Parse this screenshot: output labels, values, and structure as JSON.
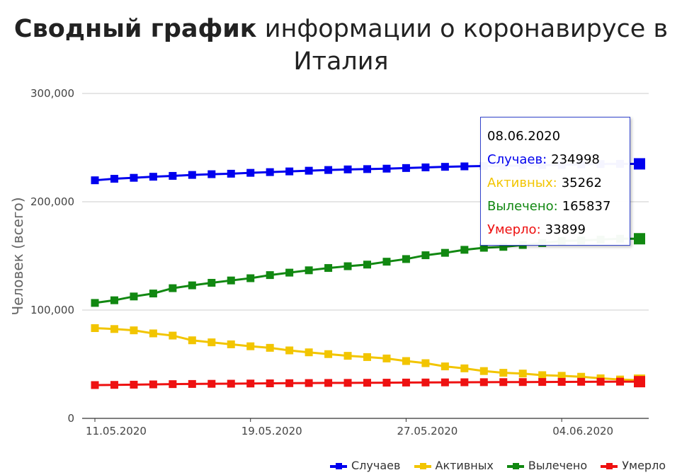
{
  "title_bold": "Сводный график",
  "title_rest": "информации о коронавирусе в Италия",
  "tooltip": {
    "date": "08.06.2020",
    "rows": [
      {
        "label": "Случаев:",
        "value": "234998"
      },
      {
        "label": "Активных:",
        "value": "35262"
      },
      {
        "label": "Вылечено:",
        "value": "165837"
      },
      {
        "label": "Умерло:",
        "value": "33899"
      }
    ]
  },
  "chart_data": {
    "type": "line",
    "title": "Сводный график информации о коронавирусе в Италия",
    "ylabel": "Человек (всего)",
    "xlabel": "",
    "ylim": [
      0,
      300000
    ],
    "y_ticks": [
      "0",
      "100,000",
      "200,000",
      "300,000"
    ],
    "x_tick_labels": [
      "11.05.2020",
      "19.05.2020",
      "27.05.2020",
      "04.06.2020"
    ],
    "x": [
      "11.05.2020",
      "12.05.2020",
      "13.05.2020",
      "14.05.2020",
      "15.05.2020",
      "16.05.2020",
      "17.05.2020",
      "18.05.2020",
      "19.05.2020",
      "20.05.2020",
      "21.05.2020",
      "22.05.2020",
      "23.05.2020",
      "24.05.2020",
      "25.05.2020",
      "26.05.2020",
      "27.05.2020",
      "28.05.2020",
      "29.05.2020",
      "30.05.2020",
      "31.05.2020",
      "01.06.2020",
      "02.06.2020",
      "03.06.2020",
      "04.06.2020",
      "05.06.2020",
      "06.06.2020",
      "07.06.2020",
      "08.06.2020"
    ],
    "grid": true,
    "legend_position": "bottom-right",
    "series": [
      {
        "name": "Случаев",
        "color": "#0000ee",
        "values": [
          219814,
          221216,
          222104,
          223096,
          223885,
          224760,
          225435,
          225886,
          226699,
          227364,
          228006,
          228658,
          229327,
          229858,
          230158,
          230555,
          231139,
          231732,
          232248,
          232664,
          232997,
          233197,
          233515,
          233836,
          234013,
          234531,
          234801,
          234998,
          234998
        ]
      },
      {
        "name": "Активных",
        "color": "#f2c500",
        "values": [
          83324,
          82488,
          81266,
          78457,
          76440,
          72070,
          70187,
          68351,
          66553,
          65129,
          62752,
          60960,
          59322,
          57752,
          56594,
          55300,
          52942,
          50966,
          47986,
          46175,
          43691,
          42075,
          41367,
          39893,
          39297,
          38429,
          36976,
          35877,
          35262
        ]
      },
      {
        "name": "Вылечено",
        "color": "#118811",
        "values": [
          106587,
          109039,
          112541,
          115288,
          120205,
          122810,
          125176,
          127326,
          129401,
          132282,
          134560,
          136720,
          138840,
          140479,
          141981,
          144658,
          147101,
          150604,
          152844,
          155633,
          157507,
          158355,
          160092,
          161895,
          163781,
          164226,
          165078,
          165837,
          165837
        ]
      },
      {
        "name": "Умерло",
        "color": "#ee1111",
        "values": [
          30739,
          30911,
          31106,
          31368,
          31610,
          31763,
          31908,
          32007,
          32169,
          32330,
          32486,
          32616,
          32735,
          32785,
          32877,
          32955,
          33072,
          33142,
          33229,
          33340,
          33415,
          33475,
          33530,
          33601,
          33689,
          33774,
          33846,
          33899,
          33899
        ]
      }
    ]
  }
}
